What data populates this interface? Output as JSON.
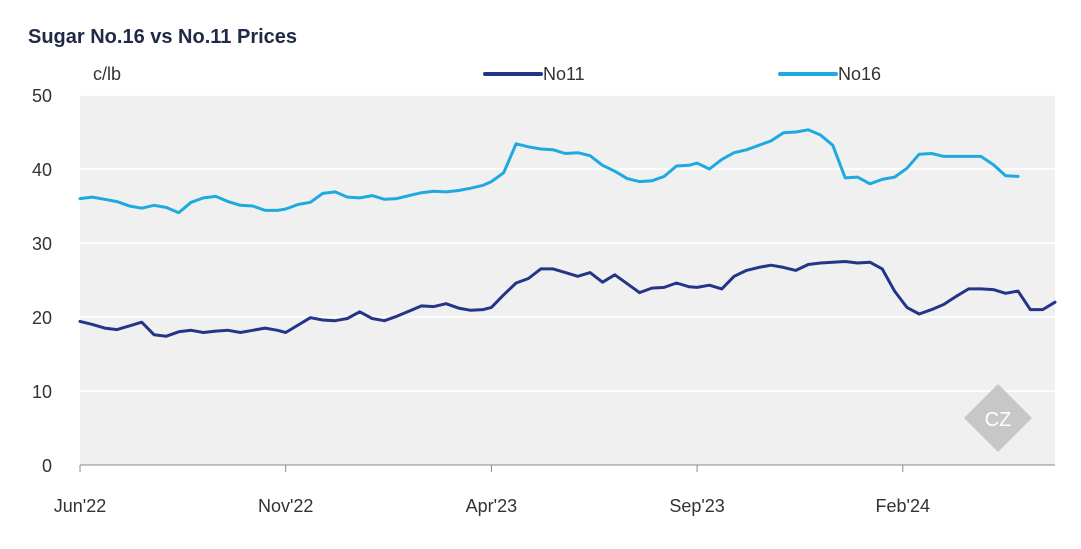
{
  "chart_data": {
    "type": "line",
    "title": "Sugar No.16 vs No.11 Prices",
    "ylabel": "c/lb",
    "xlabel": "",
    "ylim": [
      0,
      50
    ],
    "yticks": [
      0,
      10,
      20,
      30,
      40,
      50
    ],
    "xticks": [
      "Jun'22",
      "Nov'22",
      "Apr'23",
      "Sep'23",
      "Feb'24"
    ],
    "grid": true,
    "legend_position": "top-center",
    "x_unit": "months since Jun'22",
    "series": [
      {
        "name": "No11",
        "color": "#243588",
        "points": [
          [
            0,
            19.4
          ],
          [
            0.3,
            19.0
          ],
          [
            0.6,
            18.5
          ],
          [
            0.9,
            18.3
          ],
          [
            1.2,
            18.8
          ],
          [
            1.5,
            19.3
          ],
          [
            1.8,
            17.6
          ],
          [
            2.1,
            17.4
          ],
          [
            2.4,
            18.0
          ],
          [
            2.7,
            18.2
          ],
          [
            3.0,
            17.9
          ],
          [
            3.3,
            18.1
          ],
          [
            3.6,
            18.2
          ],
          [
            3.9,
            17.9
          ],
          [
            4.2,
            18.2
          ],
          [
            4.5,
            18.5
          ],
          [
            4.8,
            18.2
          ],
          [
            5.0,
            17.9
          ],
          [
            5.3,
            18.9
          ],
          [
            5.6,
            19.9
          ],
          [
            5.9,
            19.6
          ],
          [
            6.2,
            19.5
          ],
          [
            6.5,
            19.8
          ],
          [
            6.8,
            20.7
          ],
          [
            7.1,
            19.8
          ],
          [
            7.4,
            19.5
          ],
          [
            7.7,
            20.1
          ],
          [
            8.0,
            20.8
          ],
          [
            8.3,
            21.5
          ],
          [
            8.6,
            21.4
          ],
          [
            8.9,
            21.8
          ],
          [
            9.2,
            21.2
          ],
          [
            9.5,
            20.9
          ],
          [
            9.8,
            21.0
          ],
          [
            10.0,
            21.3
          ],
          [
            10.3,
            23.0
          ],
          [
            10.6,
            24.6
          ],
          [
            10.9,
            25.2
          ],
          [
            11.2,
            26.5
          ],
          [
            11.5,
            26.5
          ],
          [
            11.8,
            26.0
          ],
          [
            12.1,
            25.5
          ],
          [
            12.4,
            26.0
          ],
          [
            12.7,
            24.7
          ],
          [
            13.0,
            25.7
          ],
          [
            13.3,
            24.5
          ],
          [
            13.6,
            23.3
          ],
          [
            13.9,
            23.9
          ],
          [
            14.2,
            24.0
          ],
          [
            14.5,
            24.6
          ],
          [
            14.8,
            24.1
          ],
          [
            15.0,
            24.0
          ],
          [
            15.3,
            24.3
          ],
          [
            15.6,
            23.8
          ],
          [
            15.9,
            25.5
          ],
          [
            16.2,
            26.3
          ],
          [
            16.5,
            26.7
          ],
          [
            16.8,
            27.0
          ],
          [
            17.1,
            26.7
          ],
          [
            17.4,
            26.3
          ],
          [
            17.7,
            27.1
          ],
          [
            18.0,
            27.3
          ],
          [
            18.3,
            27.4
          ],
          [
            18.6,
            27.5
          ],
          [
            18.9,
            27.3
          ],
          [
            19.2,
            27.4
          ],
          [
            19.5,
            26.5
          ],
          [
            19.8,
            23.5
          ],
          [
            20.1,
            21.3
          ],
          [
            20.4,
            20.4
          ],
          [
            20.7,
            21.0
          ],
          [
            21.0,
            21.7
          ],
          [
            21.3,
            22.8
          ],
          [
            21.6,
            23.8
          ],
          [
            21.9,
            23.8
          ],
          [
            22.2,
            23.7
          ],
          [
            22.5,
            23.2
          ],
          [
            22.8,
            23.5
          ],
          [
            23.1,
            21.0
          ],
          [
            23.4,
            21.0
          ],
          [
            23.7,
            22.0
          ]
        ]
      },
      {
        "name": "No16",
        "color": "#1ea9e1",
        "points": [
          [
            0,
            36.0
          ],
          [
            0.3,
            36.2
          ],
          [
            0.6,
            35.9
          ],
          [
            0.9,
            35.6
          ],
          [
            1.2,
            35.0
          ],
          [
            1.5,
            34.7
          ],
          [
            1.8,
            35.1
          ],
          [
            2.1,
            34.8
          ],
          [
            2.4,
            34.1
          ],
          [
            2.7,
            35.5
          ],
          [
            3.0,
            36.1
          ],
          [
            3.3,
            36.3
          ],
          [
            3.6,
            35.6
          ],
          [
            3.9,
            35.1
          ],
          [
            4.2,
            35.0
          ],
          [
            4.5,
            34.4
          ],
          [
            4.8,
            34.4
          ],
          [
            5.0,
            34.6
          ],
          [
            5.3,
            35.2
          ],
          [
            5.6,
            35.5
          ],
          [
            5.9,
            36.7
          ],
          [
            6.2,
            36.9
          ],
          [
            6.5,
            36.2
          ],
          [
            6.8,
            36.1
          ],
          [
            7.1,
            36.4
          ],
          [
            7.4,
            35.9
          ],
          [
            7.7,
            36.0
          ],
          [
            8.0,
            36.4
          ],
          [
            8.3,
            36.8
          ],
          [
            8.6,
            37.0
          ],
          [
            8.9,
            36.9
          ],
          [
            9.2,
            37.1
          ],
          [
            9.5,
            37.4
          ],
          [
            9.8,
            37.8
          ],
          [
            10.0,
            38.3
          ],
          [
            10.3,
            39.5
          ],
          [
            10.6,
            43.4
          ],
          [
            10.9,
            43.0
          ],
          [
            11.2,
            42.7
          ],
          [
            11.5,
            42.6
          ],
          [
            11.8,
            42.1
          ],
          [
            12.1,
            42.2
          ],
          [
            12.4,
            41.8
          ],
          [
            12.7,
            40.5
          ],
          [
            13.0,
            39.7
          ],
          [
            13.3,
            38.7
          ],
          [
            13.6,
            38.3
          ],
          [
            13.9,
            38.4
          ],
          [
            14.2,
            39.0
          ],
          [
            14.5,
            40.4
          ],
          [
            14.8,
            40.5
          ],
          [
            15.0,
            40.8
          ],
          [
            15.3,
            40.0
          ],
          [
            15.6,
            41.3
          ],
          [
            15.9,
            42.2
          ],
          [
            16.2,
            42.6
          ],
          [
            16.5,
            43.2
          ],
          [
            16.8,
            43.8
          ],
          [
            17.1,
            44.9
          ],
          [
            17.4,
            45.0
          ],
          [
            17.7,
            45.3
          ],
          [
            18.0,
            44.6
          ],
          [
            18.3,
            43.2
          ],
          [
            18.6,
            38.8
          ],
          [
            18.9,
            38.9
          ],
          [
            19.2,
            38.0
          ],
          [
            19.5,
            38.6
          ],
          [
            19.8,
            38.9
          ],
          [
            20.1,
            40.1
          ],
          [
            20.4,
            42.0
          ],
          [
            20.7,
            42.1
          ],
          [
            21.0,
            41.7
          ],
          [
            21.3,
            41.7
          ],
          [
            21.6,
            41.7
          ],
          [
            21.9,
            41.7
          ],
          [
            22.2,
            40.6
          ],
          [
            22.5,
            39.1
          ],
          [
            22.8,
            39.0
          ]
        ]
      }
    ]
  }
}
